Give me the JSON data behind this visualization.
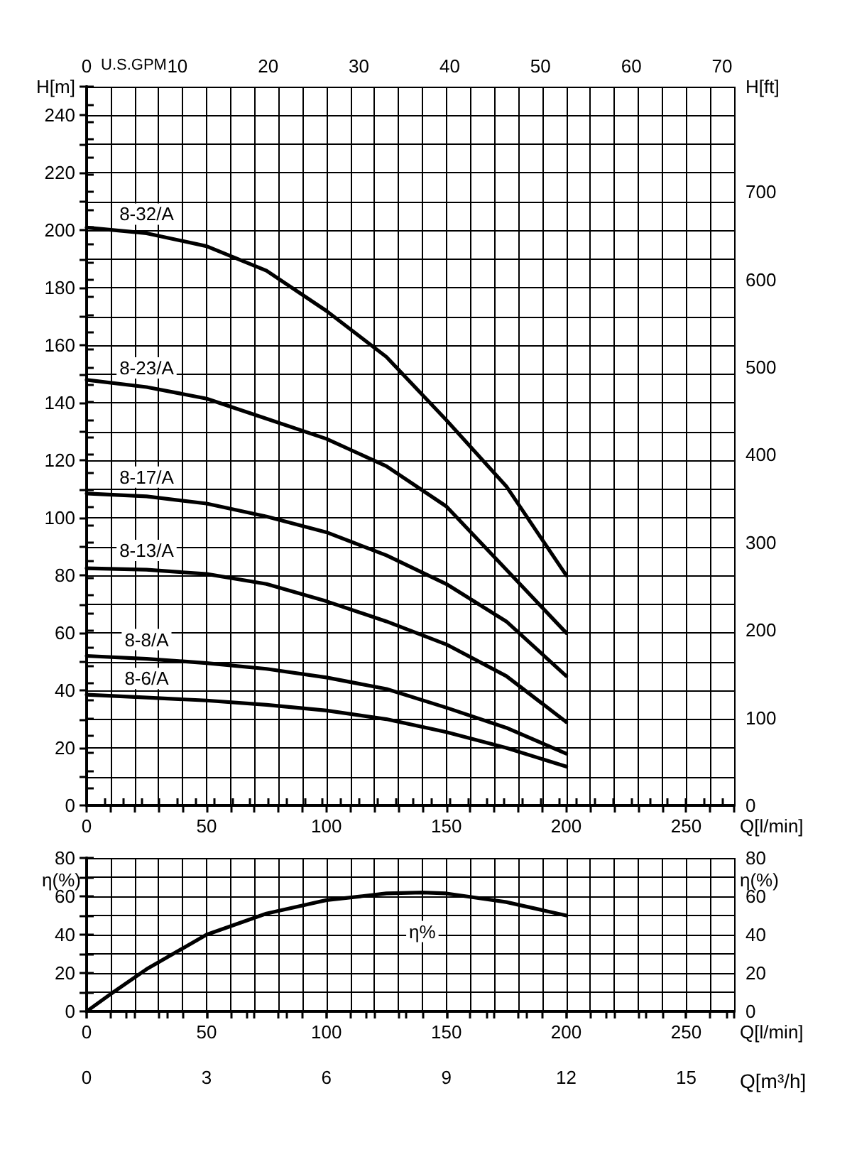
{
  "chart_data": [
    {
      "type": "line",
      "xlabel": "Q[l/min]",
      "ylabel": "H[m]",
      "y2label": "H[ft]",
      "x2label": "U.S.GPM",
      "grid": true,
      "x": [
        0,
        25,
        50,
        75,
        100,
        125,
        150,
        175,
        200
      ],
      "xlim": [
        0,
        270
      ],
      "xticks": [
        0,
        {
          "value": 10,
          "label": null
        },
        {
          "value": 20,
          "label": null
        },
        {
          "value": 30,
          "label": null
        },
        {
          "value": 40,
          "label": null
        },
        50,
        {
          "value": 60,
          "label": null
        },
        {
          "value": 70,
          "label": null
        },
        {
          "value": 80,
          "label": null
        },
        {
          "value": 90,
          "label": null
        },
        100,
        {
          "value": 110,
          "label": null
        },
        {
          "value": 120,
          "label": null
        },
        {
          "value": 130,
          "label": null
        },
        {
          "value": 140,
          "label": null
        },
        150,
        {
          "value": 160,
          "label": null
        },
        {
          "value": 170,
          "label": null
        },
        {
          "value": 180,
          "label": null
        },
        {
          "value": 190,
          "label": null
        },
        200,
        {
          "value": 210,
          "label": null
        },
        {
          "value": 220,
          "label": null
        },
        {
          "value": 230,
          "label": null
        },
        {
          "value": 240,
          "label": null
        },
        250,
        {
          "value": 260,
          "label": null
        },
        {
          "value": 270,
          "label": null
        }
      ],
      "x2lim": [
        0,
        71.33
      ],
      "x2ticks": [
        0,
        {
          "value": 2,
          "label": null
        },
        {
          "value": 4,
          "label": null
        },
        {
          "value": 6,
          "label": null
        },
        {
          "value": 8,
          "label": null
        },
        10,
        {
          "value": 12,
          "label": null
        },
        {
          "value": 14,
          "label": null
        },
        {
          "value": 16,
          "label": null
        },
        {
          "value": 18,
          "label": null
        },
        20,
        {
          "value": 22,
          "label": null
        },
        {
          "value": 24,
          "label": null
        },
        {
          "value": 26,
          "label": null
        },
        {
          "value": 28,
          "label": null
        },
        30,
        {
          "value": 32,
          "label": null
        },
        {
          "value": 34,
          "label": null
        },
        {
          "value": 36,
          "label": null
        },
        {
          "value": 38,
          "label": null
        },
        40,
        {
          "value": 42,
          "label": null
        },
        {
          "value": 44,
          "label": null
        },
        {
          "value": 46,
          "label": null
        },
        {
          "value": 48,
          "label": null
        },
        50,
        {
          "value": 52,
          "label": null
        },
        {
          "value": 54,
          "label": null
        },
        {
          "value": 56,
          "label": null
        },
        {
          "value": 58,
          "label": null
        },
        60,
        {
          "value": 62,
          "label": null
        },
        {
          "value": 64,
          "label": null
        },
        {
          "value": 66,
          "label": null
        },
        {
          "value": 68,
          "label": null
        },
        70
      ],
      "ylim": [
        0,
        250
      ],
      "yticks": [
        0,
        {
          "value": 10,
          "label": null
        },
        20,
        {
          "value": 30,
          "label": null
        },
        40,
        {
          "value": 50,
          "label": null
        },
        60,
        {
          "value": 70,
          "label": null
        },
        80,
        {
          "value": 90,
          "label": null
        },
        100,
        {
          "value": 110,
          "label": null
        },
        120,
        {
          "value": 130,
          "label": null
        },
        140,
        {
          "value": 150,
          "label": null
        },
        160,
        {
          "value": 170,
          "label": null
        },
        180,
        {
          "value": 190,
          "label": null
        },
        200,
        {
          "value": 210,
          "label": null
        },
        220,
        {
          "value": 230,
          "label": null
        },
        240,
        {
          "value": 250,
          "label": null
        }
      ],
      "y2lim": [
        0,
        820.2
      ],
      "y2ticks": [
        0,
        {
          "value": 20,
          "label": null
        },
        {
          "value": 40,
          "label": null
        },
        {
          "value": 60,
          "label": null
        },
        {
          "value": 80,
          "label": null
        },
        100,
        {
          "value": 120,
          "label": null
        },
        {
          "value": 140,
          "label": null
        },
        {
          "value": 160,
          "label": null
        },
        {
          "value": 180,
          "label": null
        },
        200,
        {
          "value": 220,
          "label": null
        },
        {
          "value": 240,
          "label": null
        },
        {
          "value": 260,
          "label": null
        },
        {
          "value": 280,
          "label": null
        },
        300,
        {
          "value": 320,
          "label": null
        },
        {
          "value": 340,
          "label": null
        },
        {
          "value": 360,
          "label": null
        },
        {
          "value": 380,
          "label": null
        },
        400,
        {
          "value": 420,
          "label": null
        },
        {
          "value": 440,
          "label": null
        },
        {
          "value": 460,
          "label": null
        },
        {
          "value": 480,
          "label": null
        },
        500,
        {
          "value": 520,
          "label": null
        },
        {
          "value": 540,
          "label": null
        },
        {
          "value": 560,
          "label": null
        },
        {
          "value": 580,
          "label": null
        },
        600,
        {
          "value": 620,
          "label": null
        },
        {
          "value": 640,
          "label": null
        },
        {
          "value": 660,
          "label": null
        },
        {
          "value": 680,
          "label": null
        },
        700,
        {
          "value": 720,
          "label": null
        },
        {
          "value": 740,
          "label": null
        },
        {
          "value": 760,
          "label": null
        },
        {
          "value": 780,
          "label": null
        },
        {
          "value": 800,
          "label": null
        },
        {
          "value": 820,
          "label": null
        }
      ],
      "series": [
        {
          "name": "8-32/A",
          "color": "#000000",
          "values": [
            201,
            199,
            194.5,
            186,
            172,
            156,
            134,
            111,
            80
          ]
        },
        {
          "name": "8-23/A",
          "color": "#000000",
          "values": [
            148,
            145.5,
            141.5,
            134.5,
            127.5,
            118,
            104,
            82,
            60
          ]
        },
        {
          "name": "8-17/A",
          "color": "#000000",
          "values": [
            108.5,
            107.5,
            105,
            100.5,
            95,
            87,
            77,
            64,
            45
          ]
        },
        {
          "name": "8-13/A",
          "color": "#000000",
          "values": [
            82.5,
            82,
            80.5,
            77,
            71,
            64,
            56,
            45,
            29
          ]
        },
        {
          "name": "8-8/A",
          "color": "#000000",
          "values": [
            52,
            51,
            49.5,
            47.5,
            44.5,
            40.5,
            34,
            27,
            18
          ]
        },
        {
          "name": "8-6/A",
          "color": "#000000",
          "values": [
            38.5,
            37.5,
            36.5,
            35,
            33,
            30,
            25.5,
            20,
            13.5
          ]
        }
      ]
    },
    {
      "type": "line",
      "xlabel": "Q[l/min]",
      "ylabel": "η(%)",
      "y2label": "η(%)",
      "x2label": "Q[m³/h]",
      "grid": true,
      "x": [
        0,
        10,
        25,
        50,
        75,
        100,
        125,
        140,
        150,
        175,
        200
      ],
      "xlim": [
        0,
        270
      ],
      "xticks": [
        0,
        {
          "value": 10,
          "label": null
        },
        {
          "value": 20,
          "label": null
        },
        {
          "value": 30,
          "label": null
        },
        {
          "value": 40,
          "label": null
        },
        50,
        {
          "value": 60,
          "label": null
        },
        {
          "value": 70,
          "label": null
        },
        {
          "value": 80,
          "label": null
        },
        {
          "value": 90,
          "label": null
        },
        100,
        {
          "value": 110,
          "label": null
        },
        {
          "value": 120,
          "label": null
        },
        {
          "value": 130,
          "label": null
        },
        {
          "value": 140,
          "label": null
        },
        150,
        {
          "value": 160,
          "label": null
        },
        {
          "value": 170,
          "label": null
        },
        {
          "value": 180,
          "label": null
        },
        {
          "value": 190,
          "label": null
        },
        200,
        {
          "value": 210,
          "label": null
        },
        {
          "value": 220,
          "label": null
        },
        {
          "value": 230,
          "label": null
        },
        {
          "value": 240,
          "label": null
        },
        250,
        {
          "value": 260,
          "label": null
        },
        {
          "value": 270,
          "label": null
        }
      ],
      "x2lim": [
        0,
        16.2
      ],
      "x2ticks": [
        0,
        {
          "value": 1,
          "label": null
        },
        {
          "value": 2,
          "label": null
        },
        3,
        {
          "value": 4,
          "label": null
        },
        {
          "value": 5,
          "label": null
        },
        6,
        {
          "value": 7,
          "label": null
        },
        {
          "value": 8,
          "label": null
        },
        9,
        {
          "value": 10,
          "label": null
        },
        {
          "value": 11,
          "label": null
        },
        12,
        {
          "value": 13,
          "label": null
        },
        {
          "value": 14,
          "label": null
        },
        15,
        {
          "value": 16,
          "label": null
        }
      ],
      "ylim": [
        0,
        80
      ],
      "yticks": [
        0,
        {
          "value": 10,
          "label": null
        },
        20,
        {
          "value": 30,
          "label": null
        },
        40,
        {
          "value": 50,
          "label": null
        },
        60,
        {
          "value": 70,
          "label": null
        },
        80
      ],
      "y2lim": [
        0,
        80
      ],
      "y2ticks": [
        0,
        {
          "value": 10,
          "label": null
        },
        20,
        {
          "value": 30,
          "label": null
        },
        40,
        {
          "value": 50,
          "label": null
        },
        60,
        {
          "value": 70,
          "label": null
        },
        80
      ],
      "series": [
        {
          "name": "η%",
          "color": "#000000",
          "values": [
            0,
            9,
            22,
            40,
            51,
            58,
            61.5,
            62,
            61.5,
            57,
            50
          ]
        }
      ]
    }
  ]
}
